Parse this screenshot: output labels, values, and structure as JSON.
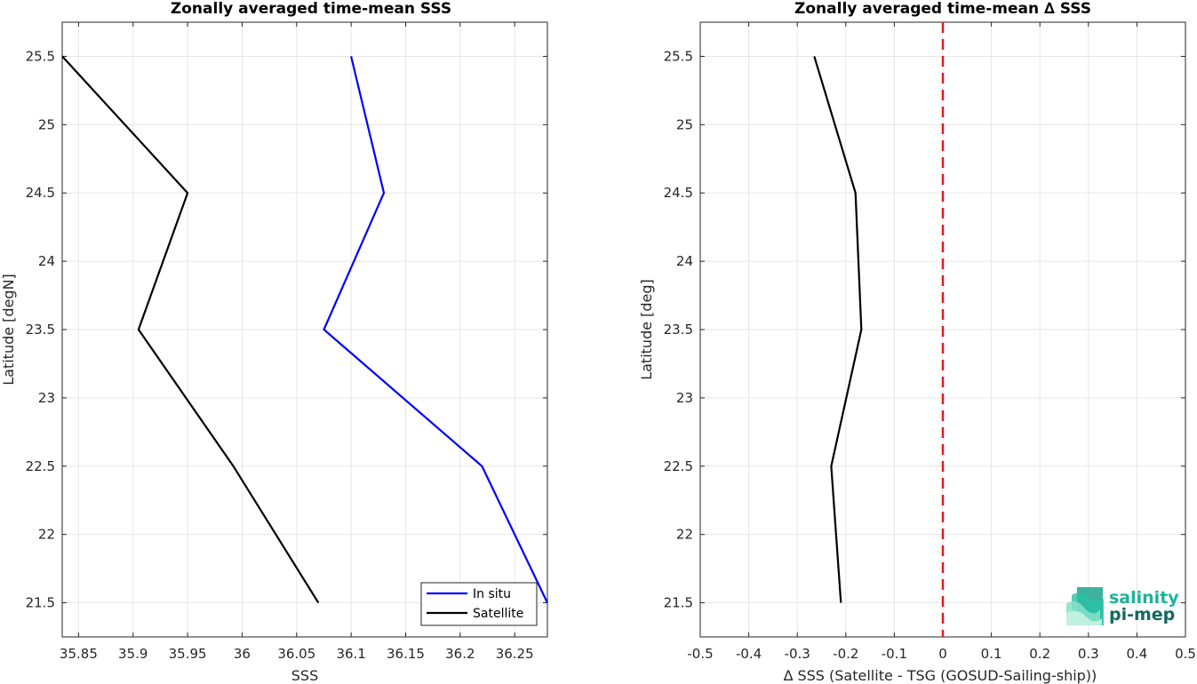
{
  "chart_data": [
    {
      "type": "line",
      "title": "Zonally averaged time-mean SSS",
      "xlabel": "SSS",
      "ylabel": "Latitude [degN]",
      "xlim": [
        35.835,
        36.28
      ],
      "ylim": [
        21.25,
        25.75
      ],
      "xticks": [
        35.85,
        35.9,
        35.95,
        36.0,
        36.05,
        36.1,
        36.15,
        36.2,
        36.25
      ],
      "xtick_labels": [
        "35.85",
        "35.9",
        "35.95",
        "36",
        "36.05",
        "36.1",
        "36.15",
        "36.2",
        "36.25"
      ],
      "yticks": [
        21.5,
        22,
        22.5,
        23,
        23.5,
        24,
        24.5,
        25,
        25.5
      ],
      "ytick_labels": [
        "21.5",
        "22",
        "22.5",
        "23",
        "23.5",
        "24",
        "24.5",
        "25",
        "25.5"
      ],
      "grid": true,
      "legend_position": "bottom-right",
      "series": [
        {
          "name": "In situ",
          "color": "#0000ff",
          "x": [
            36.28,
            36.22,
            36.075,
            36.13,
            36.1
          ],
          "y": [
            21.5,
            22.5,
            23.5,
            24.5,
            25.5
          ]
        },
        {
          "name": "Satellite",
          "color": "#000000",
          "x": [
            36.07,
            35.992,
            35.905,
            35.95,
            35.835
          ],
          "y": [
            21.5,
            22.5,
            23.5,
            24.5,
            25.5
          ]
        }
      ]
    },
    {
      "type": "line",
      "title": "Zonally averaged time-mean ∆ SSS",
      "xlabel": "∆ SSS (Satellite - TSG (GOSUD-Sailing-ship))",
      "ylabel": "Latitude [deg]",
      "xlim": [
        -0.5,
        0.5
      ],
      "ylim": [
        21.25,
        25.75
      ],
      "xticks": [
        -0.5,
        -0.4,
        -0.3,
        -0.2,
        -0.1,
        0,
        0.1,
        0.2,
        0.3,
        0.4,
        0.5
      ],
      "xtick_labels": [
        "-0.5",
        "-0.4",
        "-0.3",
        "-0.2",
        "-0.1",
        "0",
        "0.1",
        "0.2",
        "0.3",
        "0.4",
        "0.5"
      ],
      "yticks": [
        21.5,
        22,
        22.5,
        23,
        23.5,
        24,
        24.5,
        25,
        25.5
      ],
      "ytick_labels": [
        "21.5",
        "22",
        "22.5",
        "23",
        "23.5",
        "24",
        "24.5",
        "25",
        "25.5"
      ],
      "grid": true,
      "reference_line": {
        "x": 0,
        "color": "#e31a1c",
        "style": "dashed"
      },
      "series": [
        {
          "color": "#000000",
          "x": [
            -0.21,
            -0.23,
            -0.168,
            -0.18,
            -0.265
          ],
          "y": [
            21.5,
            22.5,
            23.5,
            24.5,
            25.5
          ]
        }
      ]
    }
  ],
  "logo": {
    "line1": "salinity",
    "line2": "pi-mep",
    "color1": "#1ab39a",
    "color2": "#13695f"
  }
}
